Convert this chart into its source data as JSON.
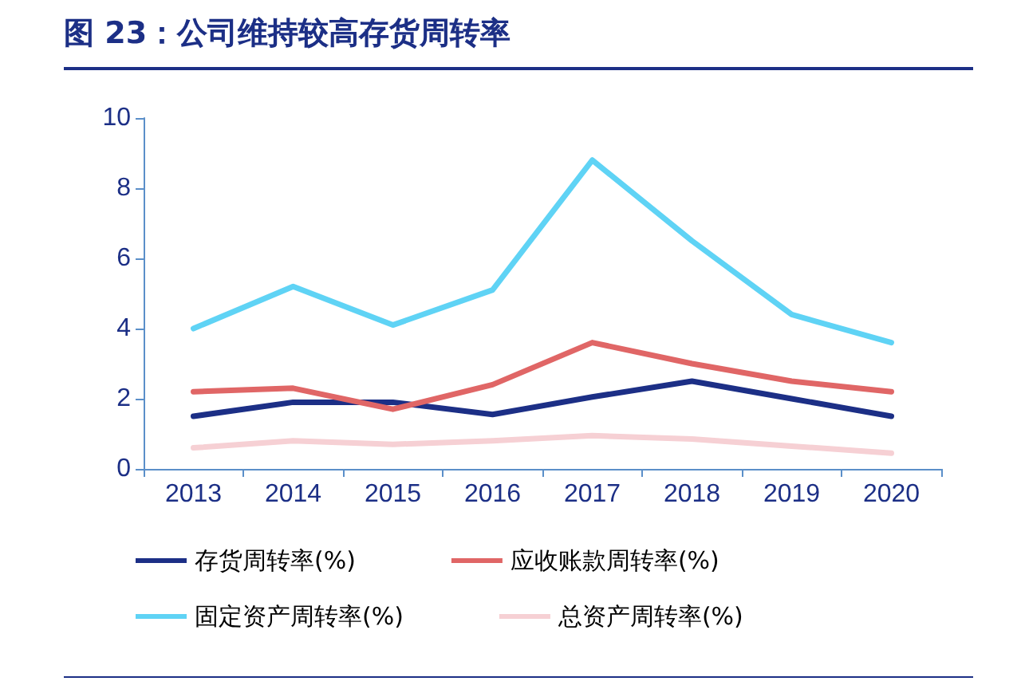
{
  "chart_data": {
    "type": "line",
    "title": "图 23：公司维持较高存货周转率",
    "categories": [
      "2013",
      "2014",
      "2015",
      "2016",
      "2017",
      "2018",
      "2019",
      "2020"
    ],
    "series": [
      {
        "name": "存货周转率(%)",
        "color": "#1c2f86",
        "values": [
          1.5,
          1.9,
          1.9,
          1.55,
          2.05,
          2.5,
          2.0,
          1.5
        ]
      },
      {
        "name": "应收账款周转率(%)",
        "color": "#e06666",
        "values": [
          2.2,
          2.3,
          1.7,
          2.4,
          3.6,
          3.0,
          2.5,
          2.2
        ]
      },
      {
        "name": "固定资产周转率(%)",
        "color": "#5fd3f5",
        "values": [
          4.0,
          5.2,
          4.1,
          5.1,
          8.8,
          6.5,
          4.4,
          3.6
        ]
      },
      {
        "name": "总资产周转率(%)",
        "color": "#f6d0d4",
        "values": [
          0.6,
          0.8,
          0.7,
          0.8,
          0.95,
          0.85,
          0.65,
          0.45
        ]
      }
    ],
    "ylim": [
      0,
      10
    ],
    "yticks": [
      0,
      2,
      4,
      6,
      8,
      10
    ],
    "grid": false,
    "legend": "bottom",
    "marker": "none",
    "line_style": "solid"
  }
}
